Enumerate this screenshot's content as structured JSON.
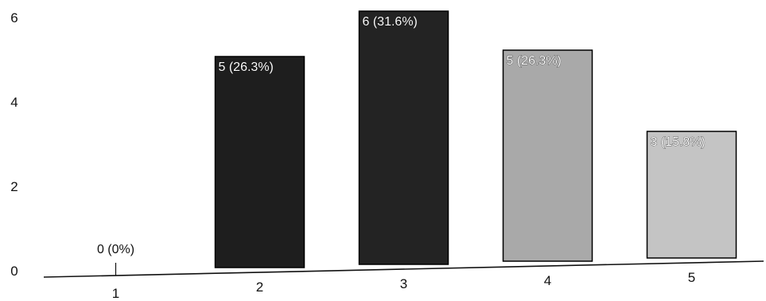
{
  "chart_data": {
    "type": "bar",
    "title": "",
    "xlabel": "",
    "ylabel": "",
    "categories": [
      "1",
      "2",
      "3",
      "4",
      "5"
    ],
    "values": [
      0,
      5,
      6,
      5,
      3
    ],
    "data_labels": [
      "0 (0%)",
      "5 (26.3%)",
      "6 (31.6%)",
      "5 (26.3%)",
      "3 (15.8%)"
    ],
    "ylim": [
      0,
      6
    ],
    "yticks": [
      "0",
      "2",
      "4",
      "6"
    ],
    "grid": false,
    "legend": "none",
    "bar_colors": [
      "#1e1e1e",
      "#1e1e1e",
      "#232323",
      "#a9a9a9",
      "#c4c4c4"
    ]
  }
}
